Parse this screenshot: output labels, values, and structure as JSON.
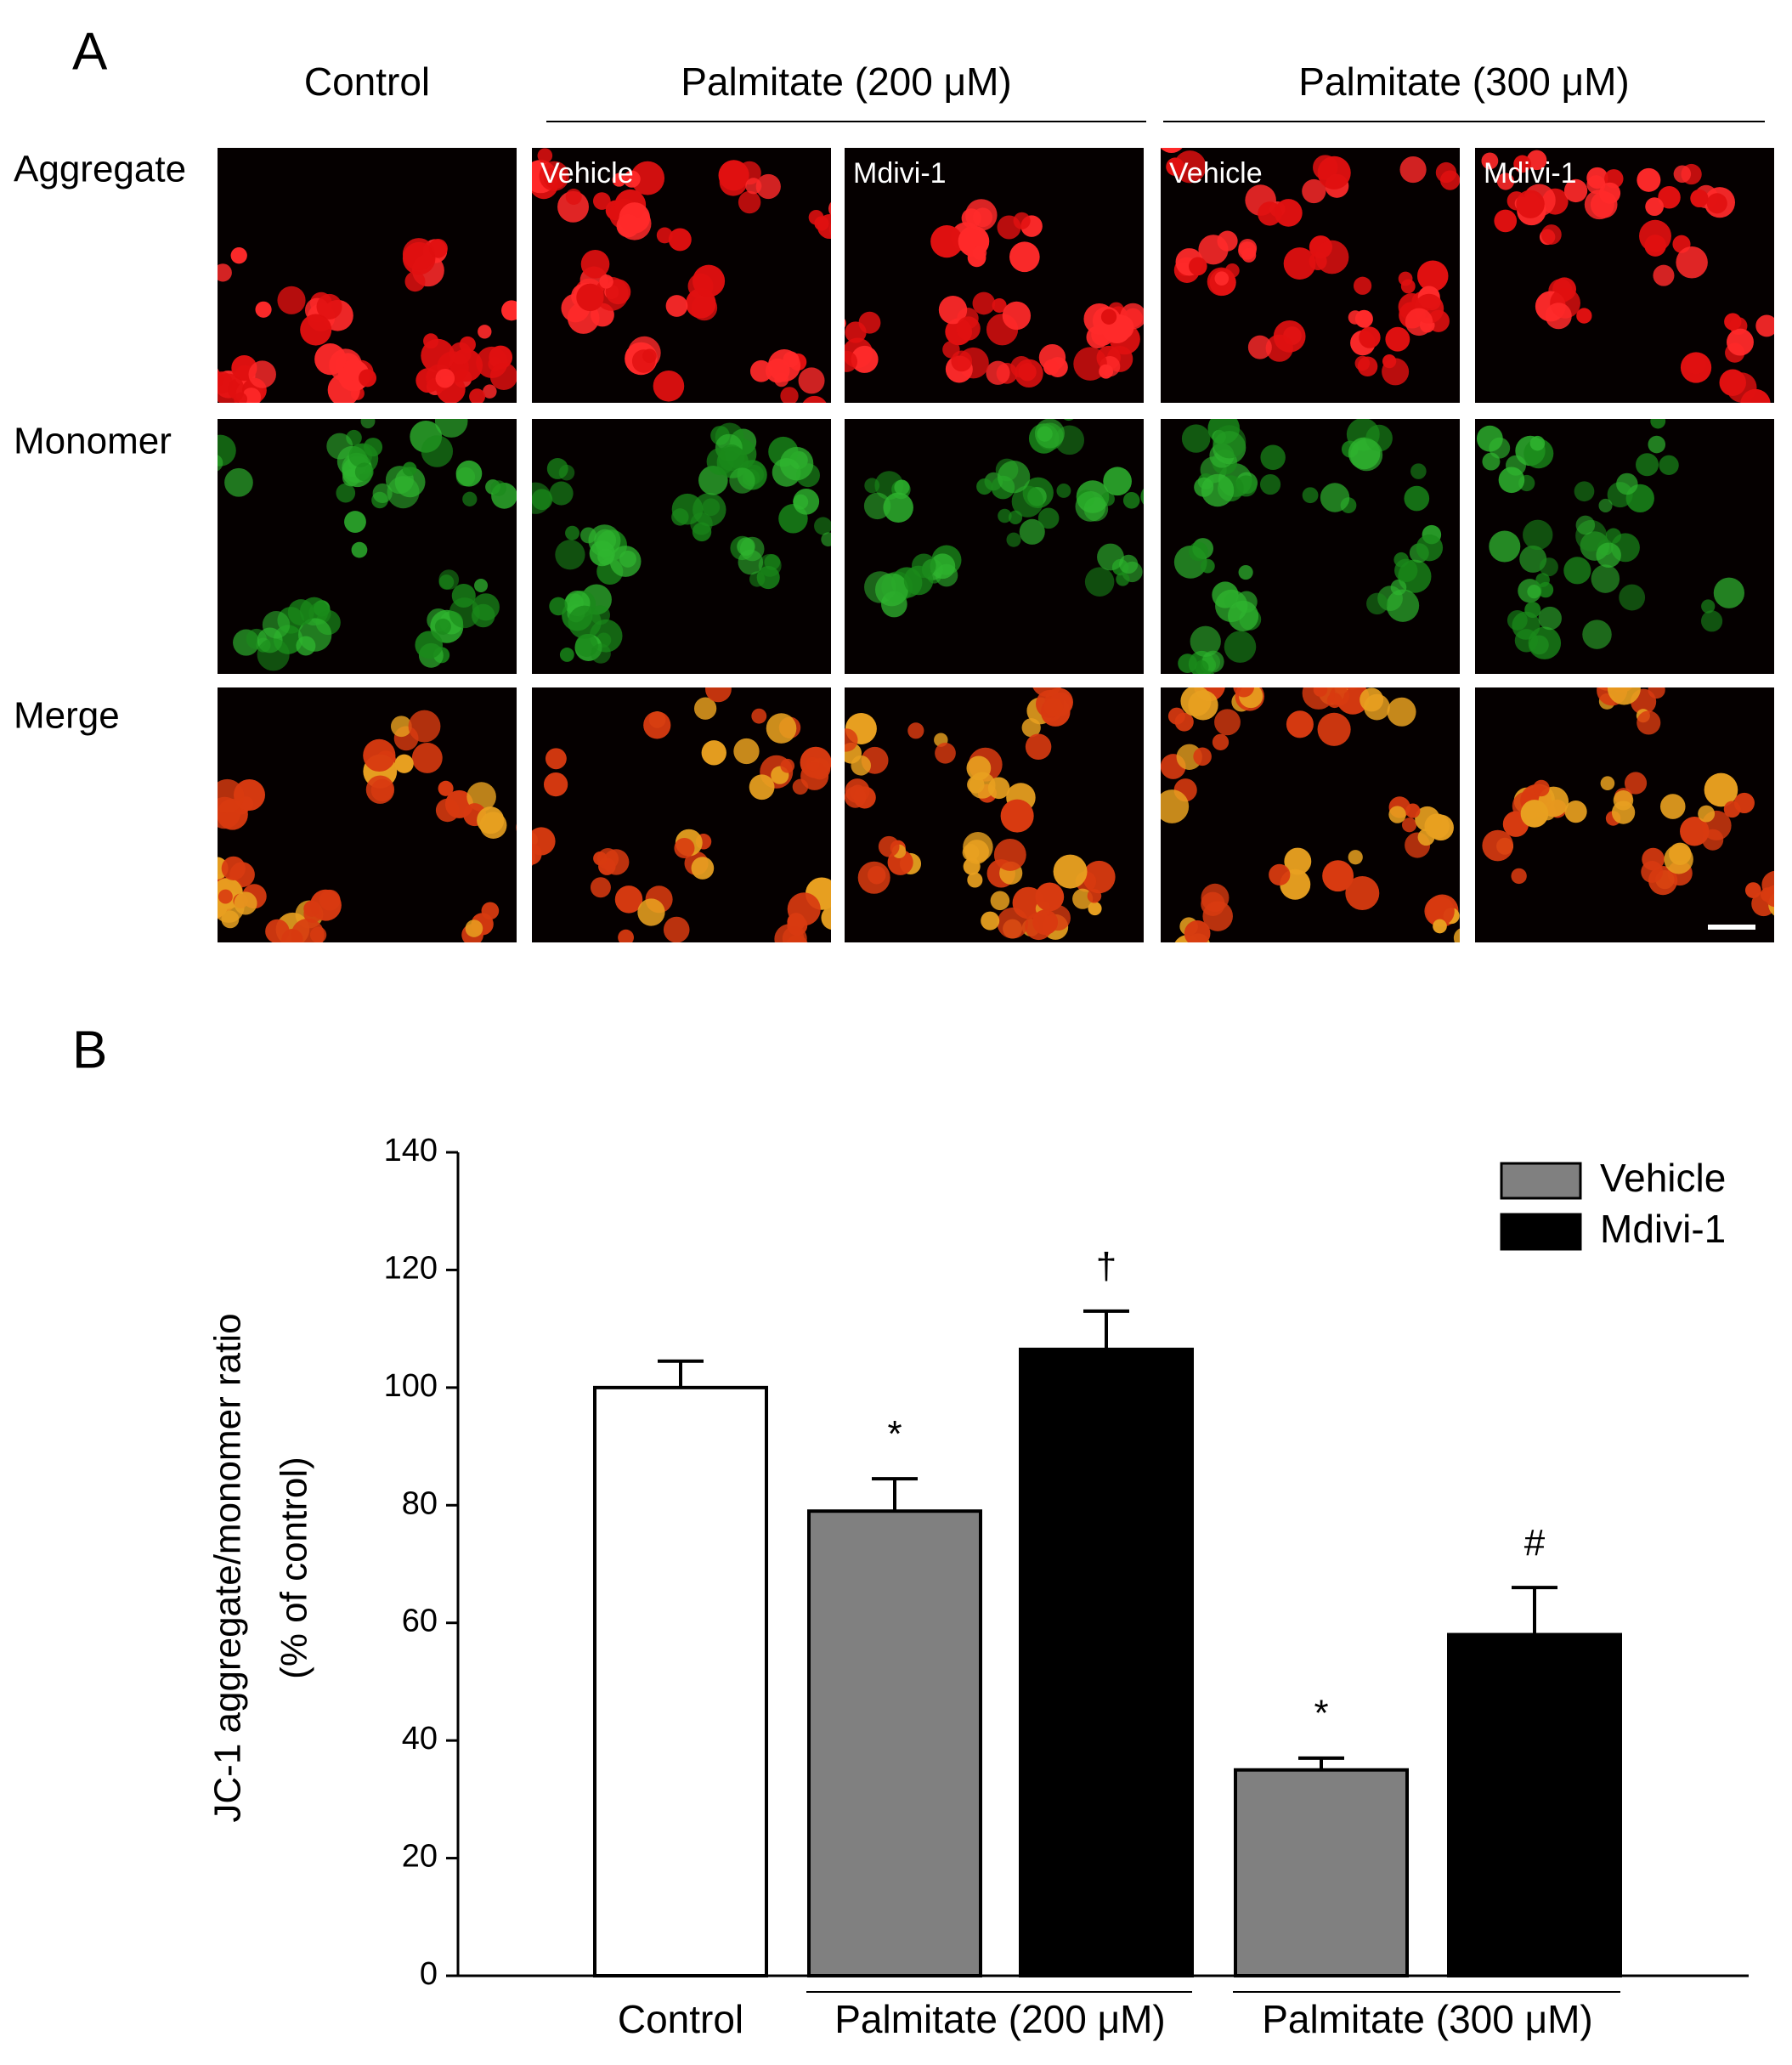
{
  "panel_a": {
    "label": "A",
    "columns": [
      "Control",
      "Palmitate (200 μM)",
      "Palmitate (300 μM)"
    ],
    "rows": [
      "Aggregate",
      "Monomer",
      "Merge"
    ],
    "treatments": [
      "Vehicle",
      "Mdivi-1",
      "Vehicle",
      "Mdivi-1"
    ]
  },
  "panel_b": {
    "label": "B"
  },
  "chart_data": {
    "type": "bar",
    "y_label": [
      "JC-1 aggregate/monomer ratio",
      "(% of control)"
    ],
    "categories": [
      "Control",
      "Palmitate (200 μM)",
      "Palmitate (300 μM)"
    ],
    "control": {
      "value": 100,
      "error": 4.5,
      "color": "#ffffff"
    },
    "series": [
      {
        "name": "Vehicle",
        "color": "#808080",
        "values": [
          null,
          79,
          35
        ],
        "errors": [
          null,
          5.5,
          2
        ],
        "annotations": [
          null,
          "*",
          "*"
        ]
      },
      {
        "name": "Mdivi-1",
        "color": "#000000",
        "values": [
          null,
          106.5,
          58
        ],
        "errors": [
          null,
          6.5,
          8
        ],
        "annotations": [
          null,
          "†",
          "#"
        ]
      }
    ],
    "ylim": [
      0,
      140
    ],
    "yticks": [
      0,
      20,
      40,
      60,
      80,
      100,
      120,
      140
    ],
    "legend": "top-right"
  }
}
